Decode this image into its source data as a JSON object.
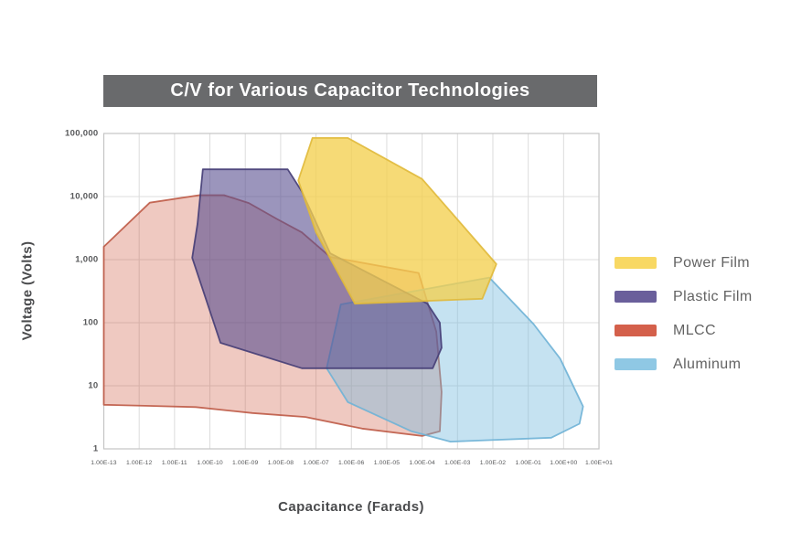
{
  "title": {
    "text": "C/V for Various Capacitor Technologies",
    "bg_color": "#696a6c",
    "text_color": "#ffffff"
  },
  "chart_data": {
    "type": "area",
    "title": "C/V for Various Capacitor Technologies",
    "xlabel": "Capacitance (Farads)",
    "ylabel": "Voltage (Volts)",
    "x_scale": "log",
    "y_scale": "log",
    "x_range_exponents": [
      -13,
      1
    ],
    "y_range": [
      1,
      100000
    ],
    "grid": true,
    "legend_position": "right",
    "x_ticks": [
      "1.00E-13",
      "1.00E-12",
      "1.00E-11",
      "1.00E-10",
      "1.00E-09",
      "1.00E-08",
      "1.00E-07",
      "1.00E-06",
      "1.00E-05",
      "1.00E-04",
      "1.00E-03",
      "1.00E-02",
      "1.00E-01",
      "1.00E+00",
      "1.00E+01"
    ],
    "y_ticks": [
      "100,000",
      "10,000",
      "1,000",
      "100",
      "10",
      "1"
    ],
    "grid_color": "#dcdcdc",
    "border_color": "#c4c4c4",
    "series": [
      {
        "name": "MLCC",
        "fill": "#CE5B44",
        "stroke": "#BE5A46",
        "fill_opacity": 0.33,
        "points_cap_exp_volts": [
          [
            -13,
            5
          ],
          [
            -13,
            1600
          ],
          [
            -11.7,
            8000
          ],
          [
            -10.3,
            10500
          ],
          [
            -9.6,
            10500
          ],
          [
            -8.9,
            7900
          ],
          [
            -8.1,
            4400
          ],
          [
            -7.4,
            2700
          ],
          [
            -6.6,
            1100
          ],
          [
            -4.1,
            615
          ],
          [
            -3.6,
            72
          ],
          [
            -3.45,
            8
          ],
          [
            -3.5,
            1.9
          ],
          [
            -4.0,
            1.6
          ],
          [
            -5.7,
            2.1
          ],
          [
            -7.3,
            3.2
          ],
          [
            -8.8,
            3.7
          ],
          [
            -10.4,
            4.6
          ],
          [
            -11.7,
            4.8
          ]
        ]
      },
      {
        "name": "Aluminum",
        "fill": "#74B9DD",
        "stroke": "#6FB3D6",
        "fill_opacity": 0.42,
        "points_cap_exp_volts": [
          [
            -6.3,
            195
          ],
          [
            -2.1,
            520
          ],
          [
            -0.85,
            95
          ],
          [
            -0.1,
            27
          ],
          [
            0.55,
            4.7
          ],
          [
            0.45,
            2.5
          ],
          [
            -0.35,
            1.5
          ],
          [
            -3.2,
            1.3
          ],
          [
            -4.3,
            1.9
          ],
          [
            -6.1,
            5.5
          ],
          [
            -6.7,
            19
          ]
        ]
      },
      {
        "name": "Plastic Film",
        "fill": "#584F90",
        "stroke": "#453D75",
        "fill_opacity": 0.6,
        "points_cap_exp_volts": [
          [
            -10.2,
            27000
          ],
          [
            -7.8,
            27000
          ],
          [
            -7.4,
            12000
          ],
          [
            -6.6,
            1260
          ],
          [
            -3.85,
            200
          ],
          [
            -3.5,
            100
          ],
          [
            -3.45,
            40
          ],
          [
            -3.7,
            19
          ],
          [
            -7.4,
            19
          ],
          [
            -9.7,
            48
          ],
          [
            -10.5,
            1070
          ],
          [
            -10.35,
            3700
          ]
        ]
      },
      {
        "name": "Power Film",
        "fill": "#F3CF4F",
        "stroke": "#E0B93B",
        "fill_opacity": 0.78,
        "points_cap_exp_volts": [
          [
            -7.1,
            85000
          ],
          [
            -6.1,
            85000
          ],
          [
            -4.0,
            19000
          ],
          [
            -1.9,
            850
          ],
          [
            -2.3,
            240
          ],
          [
            -5.9,
            200
          ],
          [
            -7.0,
            2700
          ],
          [
            -7.5,
            18000
          ]
        ]
      }
    ],
    "legend": [
      {
        "label": "Power Film",
        "color": "#F8D863"
      },
      {
        "label": "Plastic Film",
        "color": "#6A5F9B"
      },
      {
        "label": "MLCC",
        "color": "#D4604B"
      },
      {
        "label": "Aluminum",
        "color": "#8FC8E4"
      }
    ]
  }
}
